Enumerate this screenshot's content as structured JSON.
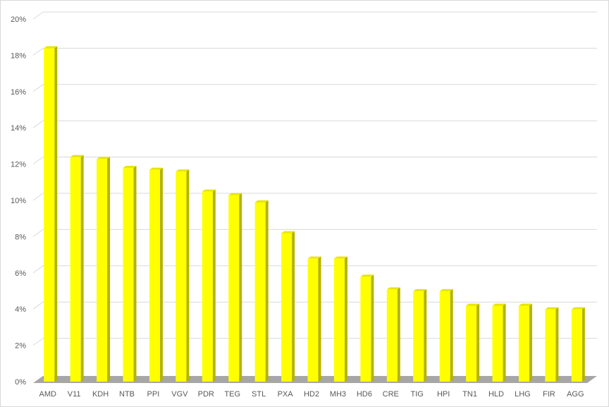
{
  "chart_data": {
    "type": "bar",
    "style": "3d-column",
    "categories": [
      "AMD",
      "V11",
      "KDH",
      "NTB",
      "PPI",
      "VGV",
      "PDR",
      "TEG",
      "STL",
      "PXA",
      "HD2",
      "MH3",
      "HD6",
      "CRE",
      "TIG",
      "HPI",
      "TN1",
      "HLD",
      "LHG",
      "FIR",
      "AGG"
    ],
    "values": [
      18.5,
      12.5,
      12.4,
      11.9,
      11.8,
      11.7,
      10.6,
      10.4,
      10.0,
      8.3,
      6.9,
      6.9,
      5.9,
      5.2,
      5.1,
      5.1,
      4.3,
      4.3,
      4.3,
      4.1,
      4.1
    ],
    "ylim": [
      0,
      20
    ],
    "yticks": [
      "0%",
      "2%",
      "4%",
      "6%",
      "8%",
      "10%",
      "12%",
      "14%",
      "16%",
      "18%",
      "20%"
    ],
    "grid": true,
    "legend": "none",
    "colors": {
      "bar_front": "#ffff00",
      "bar_side": "#b3b300",
      "bar_top": "#e6e600",
      "floor": "#a6a6a6",
      "grid": "#d9d9d9"
    }
  }
}
